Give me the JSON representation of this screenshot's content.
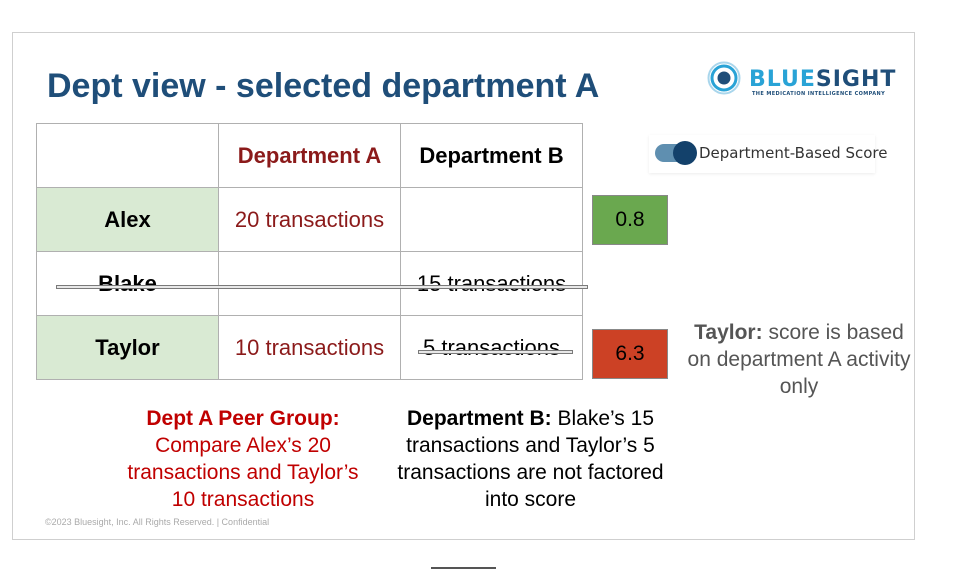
{
  "slide": {
    "title": "Dept view - selected department A",
    "logo": {
      "name_part1": "BLUE",
      "name_part2": "SIGHT",
      "tagline": "THE MEDICATION INTELLIGENCE COMPANY"
    },
    "table": {
      "headers": [
        "",
        "Department A",
        "Department B"
      ],
      "rows": [
        {
          "name": "Alex",
          "dept_a": "20 transactions",
          "dept_b": ""
        },
        {
          "name": "Blake",
          "dept_a": "",
          "dept_b": "15 transactions"
        },
        {
          "name": "Taylor",
          "dept_a": "10 transactions",
          "dept_b": "5 transactions"
        }
      ]
    },
    "scores": [
      {
        "value": "0.8",
        "color": "#6aa84f"
      },
      {
        "value": "6.3",
        "color": "#cc4125"
      }
    ],
    "toggle": {
      "label": "Department-Based Score",
      "on": true
    },
    "taylor_note": {
      "bold": "Taylor:",
      "text": " score is based on department A activity only"
    },
    "peer_note": {
      "bold": "Dept A Peer Group:",
      "text": "Compare Alex’s 20 transactions and Taylor’s 10 transactions"
    },
    "deptb_note": {
      "bold": "Department B:",
      "text": " Blake’s 15 transactions and Taylor’s 5 transactions are not factored into score"
    },
    "footer": "©2023 Bluesight, Inc. All Rights Reserved. | Confidential"
  }
}
